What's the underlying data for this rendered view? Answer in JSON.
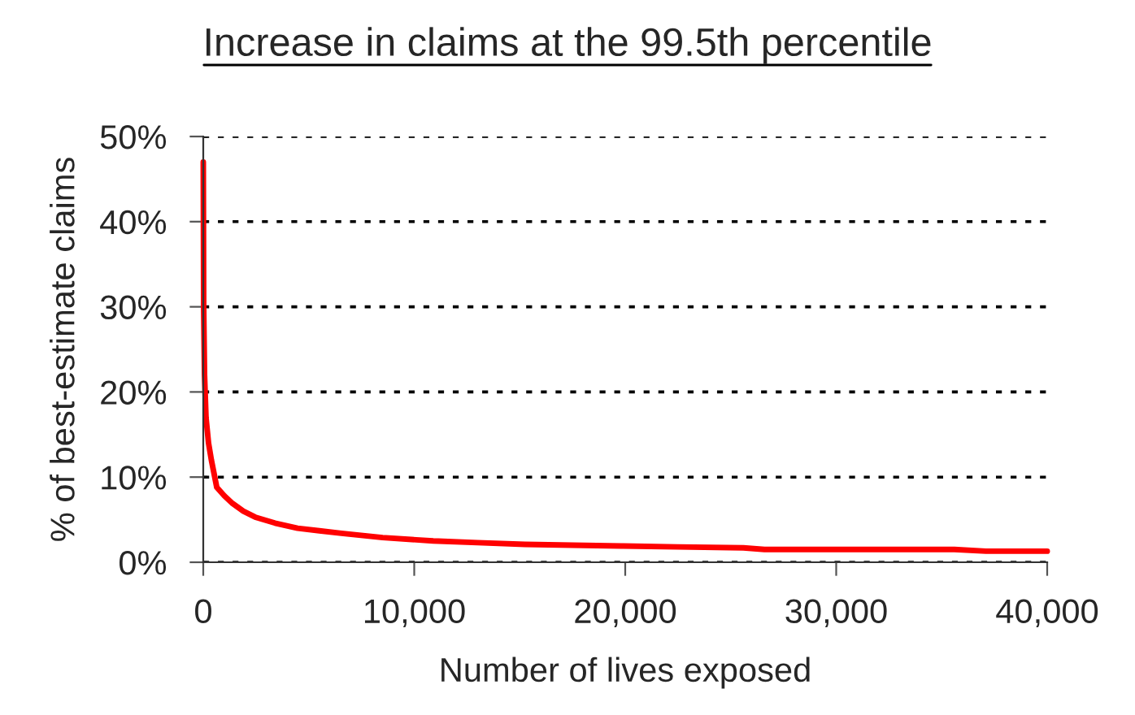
{
  "chart_data": {
    "type": "line",
    "title": "Increase in claims at the 99.5th percentile",
    "xlabel": "Number of lives exposed",
    "ylabel": "% of best-estimate claims",
    "series": [
      {
        "color": "#ff0000",
        "x": [
          1,
          20,
          60,
          130,
          250,
          385,
          640,
          1000,
          1390,
          1900,
          2460,
          3400,
          4470,
          5500,
          6550,
          8500,
          10900,
          13000,
          15250,
          17500,
          19900,
          22500,
          25600,
          26600,
          30000,
          33000,
          35600,
          37100,
          40000
        ],
        "values": [
          47,
          30,
          22,
          17,
          14,
          12,
          8.8,
          7.8,
          6.9,
          6.0,
          5.3,
          4.6,
          4.0,
          3.7,
          3.4,
          2.9,
          2.5,
          2.3,
          2.1,
          2.0,
          1.9,
          1.8,
          1.7,
          1.5,
          1.5,
          1.5,
          1.5,
          1.3,
          1.3
        ]
      }
    ],
    "xlim": [
      0,
      40000
    ],
    "xticks": [
      {
        "value": 0,
        "label": "0"
      },
      {
        "value": 10000,
        "label": "10,000"
      },
      {
        "value": 20000,
        "label": "20,000"
      },
      {
        "value": 30000,
        "label": "30,000"
      },
      {
        "value": 40000,
        "label": "40,000"
      }
    ],
    "ylim": [
      0,
      50
    ],
    "yticks": [
      {
        "value": 0,
        "label": "0%"
      },
      {
        "value": 10,
        "label": "10%"
      },
      {
        "value": 20,
        "label": "20%"
      },
      {
        "value": 30,
        "label": "30%"
      },
      {
        "value": 40,
        "label": "40%"
      },
      {
        "value": 50,
        "label": "50%"
      }
    ],
    "grid": "y",
    "legend": false,
    "line_style": "solid",
    "marker": "none"
  }
}
